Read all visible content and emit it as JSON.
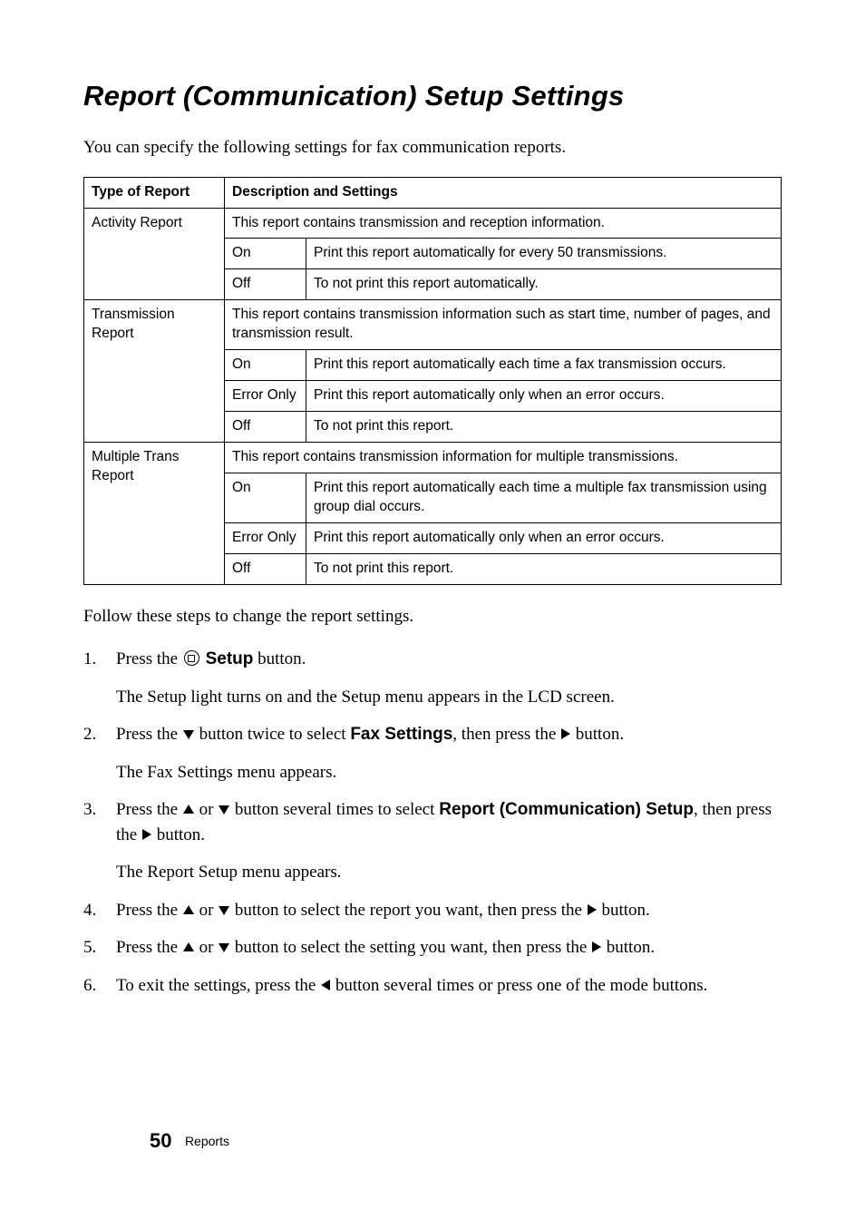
{
  "title": "Report (Communication) Setup Settings",
  "intro": "You can specify the following settings for fax communication reports.",
  "table": {
    "head": {
      "c1": "Type of Report",
      "c2": "Description and Settings"
    },
    "rows": {
      "activity": {
        "type": "Activity Report",
        "desc": "This report contains transmission and reception information.",
        "on": {
          "k": "On",
          "v": "Print this report automatically for every 50 transmissions."
        },
        "off": {
          "k": "Off",
          "v": "To not print this report automatically."
        }
      },
      "transmission": {
        "type": "Transmission Report",
        "desc": "This report contains transmission information such as start time, number of pages, and transmission result.",
        "on": {
          "k": "On",
          "v": "Print this report automatically each time a fax transmission occurs."
        },
        "error": {
          "k": "Error Only",
          "v": "Print this report automatically only when an error occurs."
        },
        "off": {
          "k": "Off",
          "v": "To not print this report."
        }
      },
      "multiple": {
        "type": "Multiple Trans Report",
        "desc": "This report contains transmission information for multiple transmissions.",
        "on": {
          "k": "On",
          "v": "Print this report automatically each time a multiple fax transmission using group dial occurs."
        },
        "error": {
          "k": "Error Only",
          "v": "Print this report automatically only when an error occurs."
        },
        "off": {
          "k": "Off",
          "v": "To not print this report."
        }
      }
    }
  },
  "follow": "Follow these steps to change the report settings.",
  "steps": {
    "s1": {
      "a": "Press the ",
      "setup": "Setup",
      "b": " button.",
      "sub": "The Setup light turns on and the Setup menu appears in the LCD screen."
    },
    "s2": {
      "a": "Press the ",
      "b": " button twice to select ",
      "fax": "Fax Settings",
      "c": ", then press the ",
      "d": " button.",
      "sub": "The Fax Settings menu appears."
    },
    "s3": {
      "a": "Press the ",
      "b": " or ",
      "c": " button several times to select ",
      "rc": "Report (Communication) Setup",
      "d": ", then press the ",
      "e": " button.",
      "sub": "The Report Setup menu appears."
    },
    "s4": {
      "a": "Press the ",
      "b": " or ",
      "c": " button to select the report you want, then press the ",
      "d": " button."
    },
    "s5": {
      "a": "Press the ",
      "b": " or ",
      "c": " button to select the setting you want, then press the ",
      "d": " button."
    },
    "s6": {
      "a": "To exit the settings, press the ",
      "b": " button several times or press one of the mode buttons."
    }
  },
  "footer": {
    "page": "50",
    "section": "Reports"
  }
}
